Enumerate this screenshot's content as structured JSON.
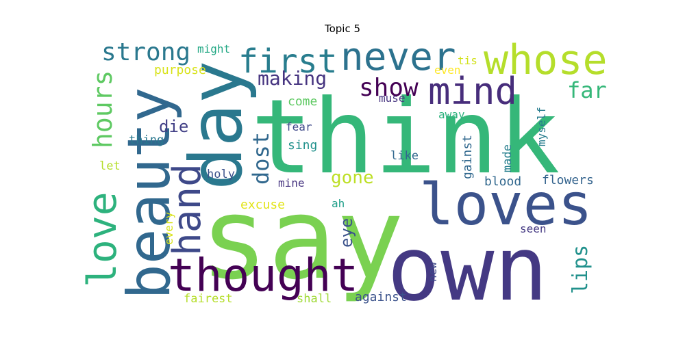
{
  "title": "Topic 5",
  "palette": "viridis",
  "words": [
    {
      "text": "think",
      "color": "#35b779"
    },
    {
      "text": "say",
      "color": "#7ad151"
    },
    {
      "text": "own",
      "color": "#443983"
    },
    {
      "text": "day",
      "color": "#2a788e"
    },
    {
      "text": "beauty",
      "color": "#31688e"
    },
    {
      "text": "loves",
      "color": "#3b528b"
    },
    {
      "text": "thought",
      "color": "#440154"
    },
    {
      "text": "never",
      "color": "#2c728e"
    },
    {
      "text": "mind",
      "color": "#472d7b"
    },
    {
      "text": "whose",
      "color": "#b5de2b"
    },
    {
      "text": "first",
      "color": "#287d8e"
    },
    {
      "text": "love",
      "color": "#2db27d"
    },
    {
      "text": "hand",
      "color": "#3e4989"
    },
    {
      "text": "strong",
      "color": "#2a788e"
    },
    {
      "text": "show",
      "color": "#440154"
    },
    {
      "text": "far",
      "color": "#35b779"
    },
    {
      "text": "hours",
      "color": "#5ec962"
    },
    {
      "text": "dost",
      "color": "#31688e"
    },
    {
      "text": "gone",
      "color": "#bddf26"
    },
    {
      "text": "making",
      "color": "#463480"
    },
    {
      "text": "lips",
      "color": "#21918c"
    },
    {
      "text": "eye",
      "color": "#3b528b"
    },
    {
      "text": "die",
      "color": "#424086"
    },
    {
      "text": "against",
      "color": "#3b528b"
    },
    {
      "text": "flowers",
      "color": "#33638d"
    },
    {
      "text": "purpose",
      "color": "#d8e219"
    },
    {
      "text": "blood",
      "color": "#31688e"
    },
    {
      "text": "come",
      "color": "#5ec962"
    },
    {
      "text": "might",
      "color": "#22a884"
    },
    {
      "text": "thing",
      "color": "#2a788e"
    },
    {
      "text": "fear",
      "color": "#3e4989"
    },
    {
      "text": "muse",
      "color": "#463480"
    },
    {
      "text": "away",
      "color": "#2db27d"
    },
    {
      "text": "excuse",
      "color": "#e2e418"
    },
    {
      "text": "holy",
      "color": "#3b528b"
    },
    {
      "text": "mine",
      "color": "#463480"
    },
    {
      "text": "sing",
      "color": "#21918c"
    },
    {
      "text": "like",
      "color": "#31688e"
    },
    {
      "text": "let",
      "color": "#b5de2b"
    },
    {
      "text": "myself",
      "color": "#287d8e"
    },
    {
      "text": "gainst",
      "color": "#31688e"
    },
    {
      "text": "made",
      "color": "#277f8e"
    },
    {
      "text": "fairest",
      "color": "#b5de2b"
    },
    {
      "text": "shall",
      "color": "#a0da39"
    },
    {
      "text": "seen",
      "color": "#443983"
    },
    {
      "text": "every",
      "color": "#d8e219"
    },
    {
      "text": "new",
      "color": "#3e4989"
    },
    {
      "text": "ah",
      "color": "#1f9e89"
    },
    {
      "text": "tis",
      "color": "#d2e21b"
    },
    {
      "text": "even",
      "color": "#fde725"
    }
  ]
}
